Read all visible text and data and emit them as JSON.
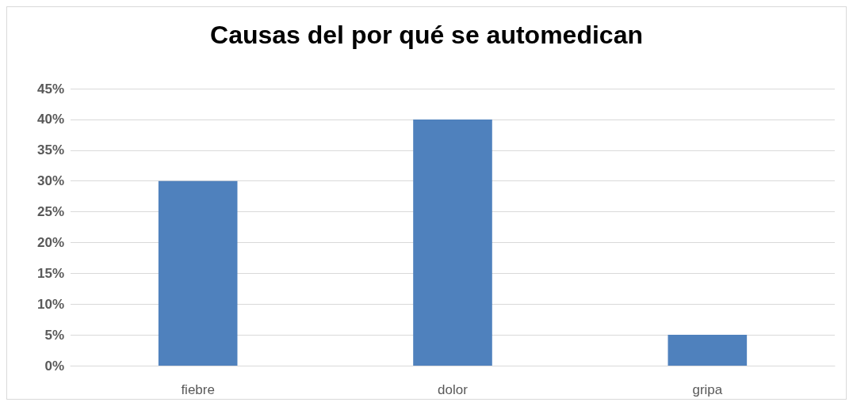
{
  "chart_data": {
    "type": "bar",
    "title": "Causas del por qué se automedican",
    "categories": [
      "fiebre",
      "dolor",
      "gripa"
    ],
    "values": [
      30,
      40,
      5
    ],
    "color": "#4f81bd",
    "ylim": [
      0,
      45
    ],
    "yticks": [
      {
        "value": 0,
        "label": "0%"
      },
      {
        "value": 5,
        "label": "5%"
      },
      {
        "value": 10,
        "label": "10%"
      },
      {
        "value": 15,
        "label": "15%"
      },
      {
        "value": 20,
        "label": "20%"
      },
      {
        "value": 25,
        "label": "25%"
      },
      {
        "value": 30,
        "label": "30%"
      },
      {
        "value": 35,
        "label": "35%"
      },
      {
        "value": 40,
        "label": "40%"
      },
      {
        "value": 45,
        "label": "45%"
      }
    ],
    "grid": true
  }
}
